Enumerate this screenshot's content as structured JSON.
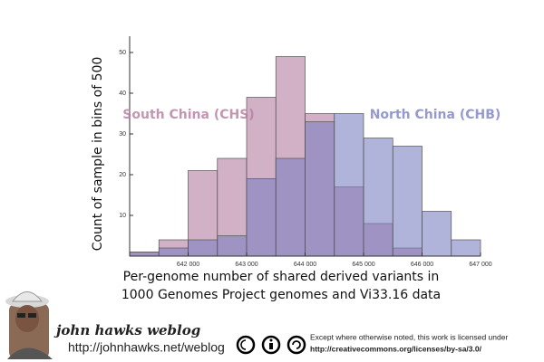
{
  "chart_data": {
    "type": "histogram",
    "xlabel": [
      "Per-genome number of shared derived variants in",
      "1000 Genomes Project genomes and Vi33.16 data"
    ],
    "ylabel": "Count of sample in bins of 500",
    "bins": [
      641000,
      641500,
      642000,
      642500,
      643000,
      643500,
      644000,
      644500,
      645000,
      645500,
      646000,
      646500,
      647000
    ],
    "series": [
      {
        "name": "South China (CHS)",
        "color": "#b47c9f",
        "values": [
          1,
          4,
          21,
          24,
          39,
          49,
          35,
          17,
          8,
          2,
          0,
          0
        ]
      },
      {
        "name": "North China (CHB)",
        "color": "#7c80c2",
        "values": [
          1,
          2,
          4,
          5,
          19,
          24,
          33,
          35,
          29,
          27,
          11,
          4
        ]
      }
    ],
    "xlim": [
      641000,
      647000
    ],
    "ylim": [
      0,
      54
    ],
    "xticks": [
      {
        "value": 642000,
        "label": "642 000"
      },
      {
        "value": 643000,
        "label": "643 000"
      },
      {
        "value": 644000,
        "label": "644 000"
      },
      {
        "value": 645000,
        "label": "645 000"
      },
      {
        "value": 646000,
        "label": "646 000"
      },
      {
        "value": 647000,
        "label": "647 000"
      }
    ],
    "yticks": [
      10,
      20,
      30,
      40,
      50
    ]
  },
  "footer": {
    "blog_title": "john hawks weblog",
    "blog_url": "http://johnhawks.net/weblog",
    "license_note": "Except where otherwise noted, this work is licensed under",
    "license_url": "http://creativecommons.org/licenses/by-sa/3.0/"
  }
}
